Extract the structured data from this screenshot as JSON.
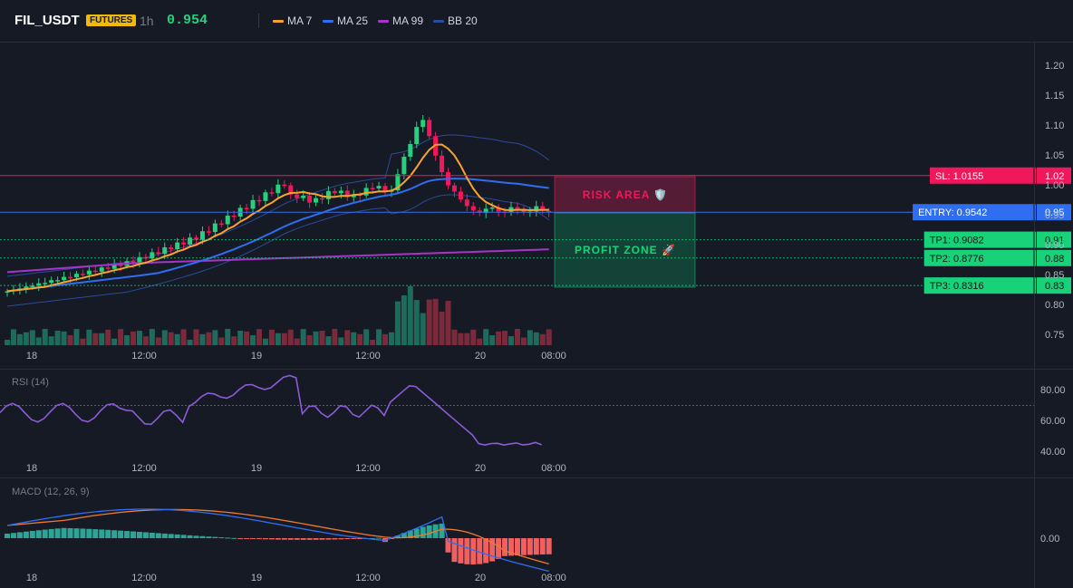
{
  "header": {
    "symbol": "FIL_USDT",
    "badge": "FUTURES",
    "timeframe": "1h",
    "price": "0.954",
    "legend": [
      {
        "name": "MA 7",
        "color": "#f7a32c"
      },
      {
        "name": "MA 25",
        "color": "#2f6ef0"
      },
      {
        "name": "MA 99",
        "color": "#a535c8"
      },
      {
        "name": "BB 20",
        "color": "#2a4a9a"
      }
    ]
  },
  "price_axis": [
    "1.20",
    "1.15",
    "1.10",
    "1.05",
    "1.00",
    "0.95",
    "0.90",
    "0.85",
    "0.80",
    "0.75"
  ],
  "time_axis": [
    "18",
    "12:00",
    "19",
    "12:00",
    "20",
    "08:00"
  ],
  "rsi": {
    "title": "RSI (14)",
    "ticks": [
      "80.00",
      "60.00",
      "40.00"
    ]
  },
  "macd": {
    "title": "MACD (12, 26, 9)",
    "ticks": [
      "0.00"
    ]
  },
  "zones": {
    "risk": "RISK AREA 🛡️",
    "profit": "PROFIT ZONE 🚀"
  },
  "levels": {
    "sl": {
      "label": "SL: 1.0155",
      "value": "1.02",
      "price": 1.0155,
      "color": "#f0185a"
    },
    "entry": {
      "label": "ENTRY: 0.9542",
      "value": "0.95",
      "price": 0.9542,
      "color": "#2f6ef0"
    },
    "tp": [
      {
        "label": "TP1: 0.9082",
        "value": "0.91",
        "price": 0.9082
      },
      {
        "label": "TP2: 0.8776",
        "value": "0.88",
        "price": 0.8776
      },
      {
        "label": "TP3: 0.8316",
        "value": "0.83",
        "price": 0.8316
      }
    ],
    "tp_color": "#18d27a"
  },
  "colors": {
    "up": "#26d07c",
    "down": "#f0185a",
    "vol_up": "#1e6b5c",
    "vol_down": "#7a2a3a",
    "rsi": "#8a5cd6",
    "macd": "#2f6ef0",
    "signal": "#f07a2c",
    "hist_up": "#2ea496",
    "hist_down": "#f06060"
  }
}
